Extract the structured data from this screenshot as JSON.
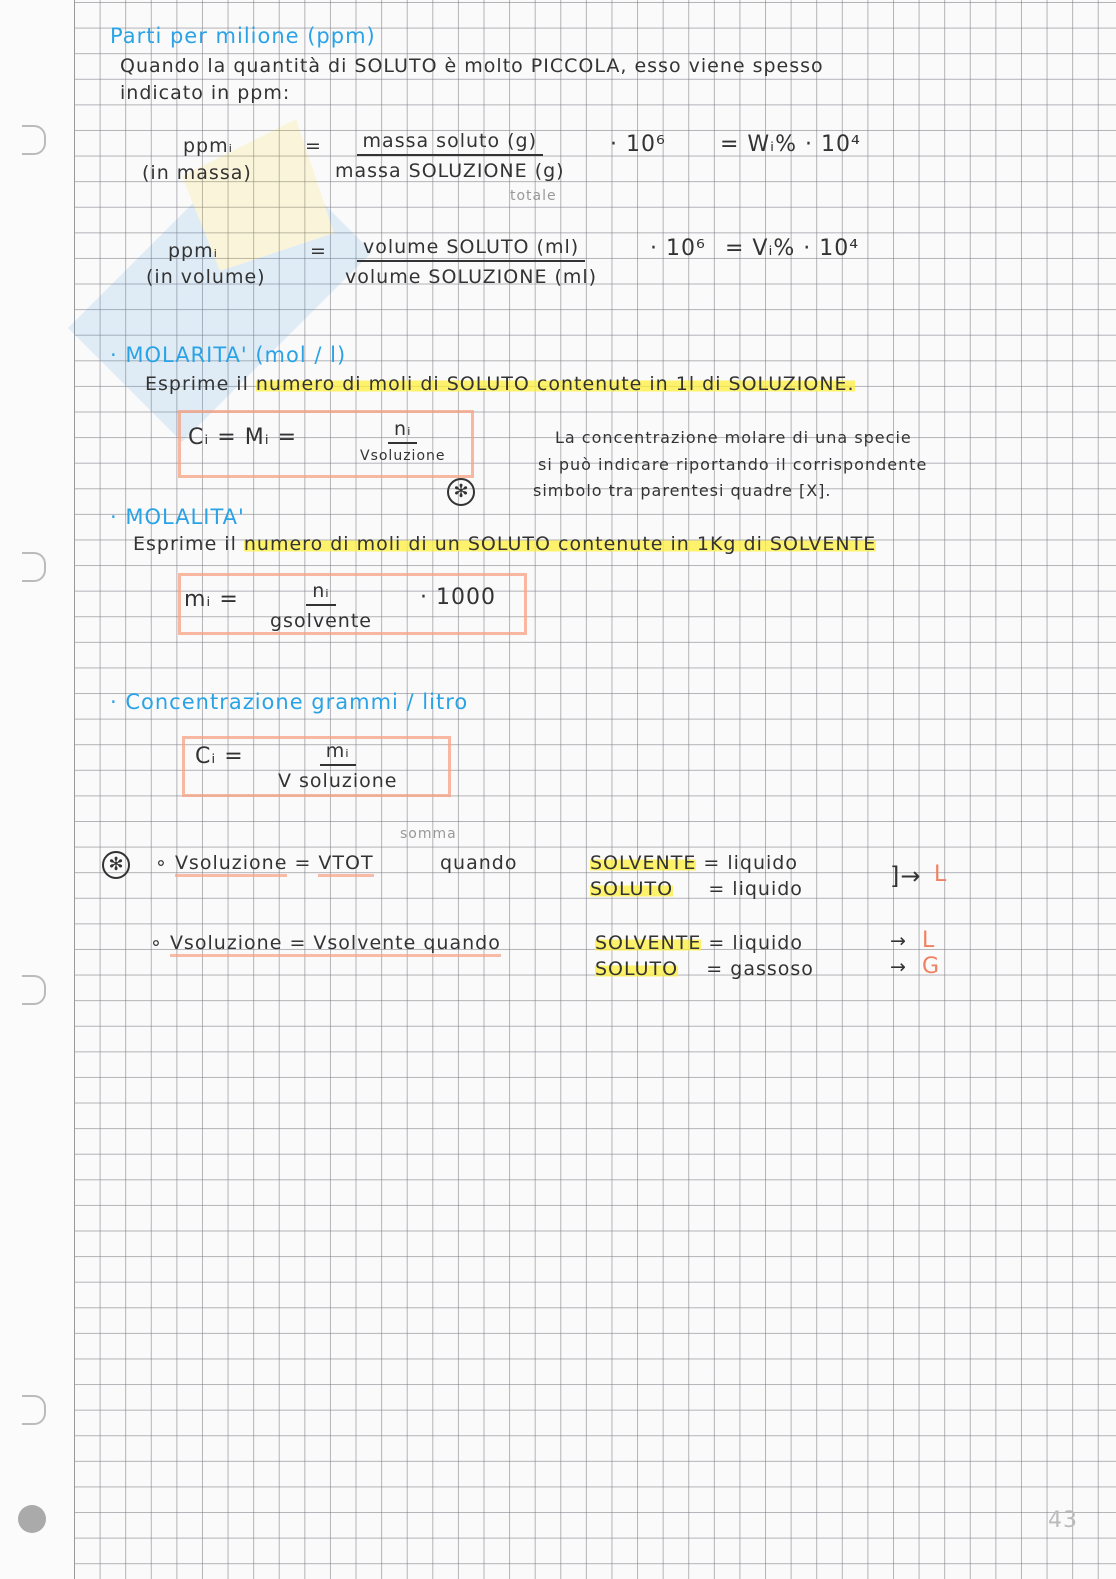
{
  "ppm": {
    "title": "Parti per milione (ppm)",
    "intro_line1": "Quando la quantità di SOLUTO è molto PICCOLA, esso viene spesso",
    "intro_line2": "indicato in ppm:",
    "mass": {
      "lhs": "ppmᵢ",
      "lhs_note": "(in massa)",
      "numerator": "massa soluto (g)",
      "denominator": "massa SOLUZIONE (g)",
      "annotation": "totale",
      "factor": "· 10⁶",
      "equals": "= Wᵢ%  · 10⁴"
    },
    "volume": {
      "lhs": "ppmᵢ",
      "lhs_note": "(in volume)",
      "numerator": "volume SOLUTO (ml)",
      "denominator": "volume SOLUZIONE (ml)",
      "factor": "· 10⁶",
      "equals": "= Vᵢ%  · 10⁴"
    }
  },
  "molarity": {
    "title": "MOLARITA' (mol / l)",
    "description_plain": "Esprime il ",
    "description_highlight": "numero di moli di SOLUTO contenute in 1l di SOLUZIONE.",
    "formula_lhs": "Cᵢ = Mᵢ =",
    "numerator": "nᵢ",
    "denominator": "Vsoluzione",
    "note_line1": "La concentrazione molare di una specie",
    "note_line2": "si può indicare riportando il corrispondente",
    "note_line3": "simbolo tra parentesi quadre [X].",
    "star": "✻"
  },
  "molality": {
    "title": "MOLALITA'",
    "description_plain": "Esprime il ",
    "description_highlight": "numero di moli di un SOLUTO contenute in 1Kg di SOLVENTE",
    "formula_lhs": "mᵢ =",
    "numerator": "nᵢ",
    "denominator": "gsolvente",
    "factor": "· 1000"
  },
  "grams_per_liter": {
    "title": "Concentrazione grammi / litro",
    "formula_lhs": "Cᵢ =",
    "numerator": "mᵢ",
    "denominator": "V soluzione"
  },
  "volume_notes": {
    "star": "✻",
    "row1": {
      "lhs": "Vsoluzione",
      "eq": "=",
      "rhs": "VTOT",
      "annotation": "somma",
      "when": "quando",
      "solvent": "SOLVENTE",
      "solvent_state": "= liquido",
      "solute": "SOLUTO",
      "solute_state": "= liquido",
      "result": "L"
    },
    "row2": {
      "lhs": "Vsoluzione",
      "eq": "=",
      "rhs": "Vsolvente",
      "when": "quando",
      "solvent": "SOLVENTE",
      "solvent_state": "= liquido",
      "solvent_result": "L",
      "solute": "SOLUTO",
      "solute_state": "= gassoso",
      "solute_result": "G"
    }
  },
  "page_number": "43"
}
